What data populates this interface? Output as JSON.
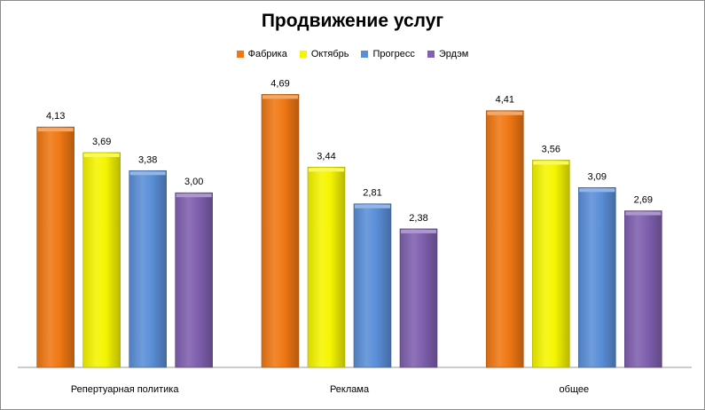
{
  "chart_data": {
    "type": "bar",
    "title": "Продвижение услуг",
    "categories": [
      "Репертуарная политика",
      "Реклама",
      "общее"
    ],
    "series": [
      {
        "name": "Фабрика",
        "color": "#f07814",
        "values": [
          4.13,
          4.69,
          4.41
        ],
        "labels": [
          "4,13",
          "4,69",
          "4,41"
        ]
      },
      {
        "name": "Октябрь",
        "color": "#f5f500",
        "values": [
          3.69,
          3.44,
          3.56
        ],
        "labels": [
          "3,69",
          "3,44",
          "3,56"
        ]
      },
      {
        "name": "Прогресс",
        "color": "#5a8fd8",
        "values": [
          3.38,
          2.81,
          3.09
        ],
        "labels": [
          "3,38",
          "2,81",
          "3,09"
        ]
      },
      {
        "name": "Эрдэм",
        "color": "#8060b0",
        "values": [
          3.0,
          2.38,
          2.69
        ],
        "labels": [
          "3,00",
          "2,38",
          "2,69"
        ]
      }
    ],
    "ylim": [
      0,
      5
    ],
    "legend": "top",
    "grid": false,
    "xlabel": "",
    "ylabel": ""
  }
}
